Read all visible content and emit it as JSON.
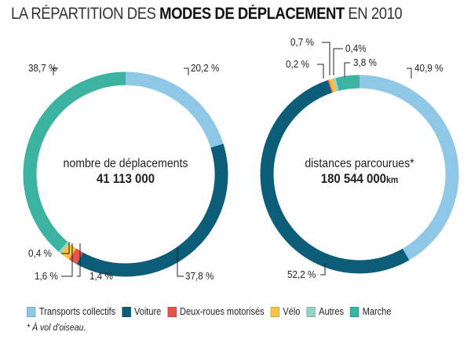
{
  "title": {
    "prefix": "LA RÉPARTITION DES ",
    "bold": "MODES DE DÉPLACEMENT",
    "suffix": " EN 2010"
  },
  "chart_data": [
    {
      "type": "pie",
      "variant": "donut",
      "center_label": "nombre de déplacements",
      "center_value": "41 113 000",
      "categories": [
        "Transports collectifs",
        "Voiture",
        "Deux-roues motorisés",
        "Vélo",
        "Autres",
        "Marche"
      ],
      "values": [
        20.2,
        37.8,
        1.4,
        1.6,
        0.4,
        38.7
      ],
      "labels": [
        "20,2 %",
        "37,8 %",
        "1,4 %",
        "1,6 %",
        "0,4 %",
        "38,7 %"
      ]
    },
    {
      "type": "pie",
      "variant": "donut",
      "center_label": "distances parcourues*",
      "center_value": "180 544 000",
      "center_unit": "km",
      "categories": [
        "Transports collectifs",
        "Voiture",
        "Deux-roues motorisés",
        "Vélo",
        "Autres",
        "Marche"
      ],
      "values": [
        40.9,
        52.2,
        0.2,
        0.7,
        0.4,
        3.8
      ],
      "labels": [
        "40,9 %",
        "52,2 %",
        "0,2 %",
        "0,7 %",
        "0,4%",
        "3,8 %"
      ]
    }
  ],
  "colors": [
    "#8fc8e6",
    "#0b5d78",
    "#e5534b",
    "#f7c243",
    "#94d3c7",
    "#3cb3a1"
  ],
  "legend": [
    "Transports collectifs",
    "Voiture",
    "Deux-roues motorisés",
    "Vélo",
    "Autres",
    "Marche"
  ],
  "footnote": "* À vol d'oiseau."
}
